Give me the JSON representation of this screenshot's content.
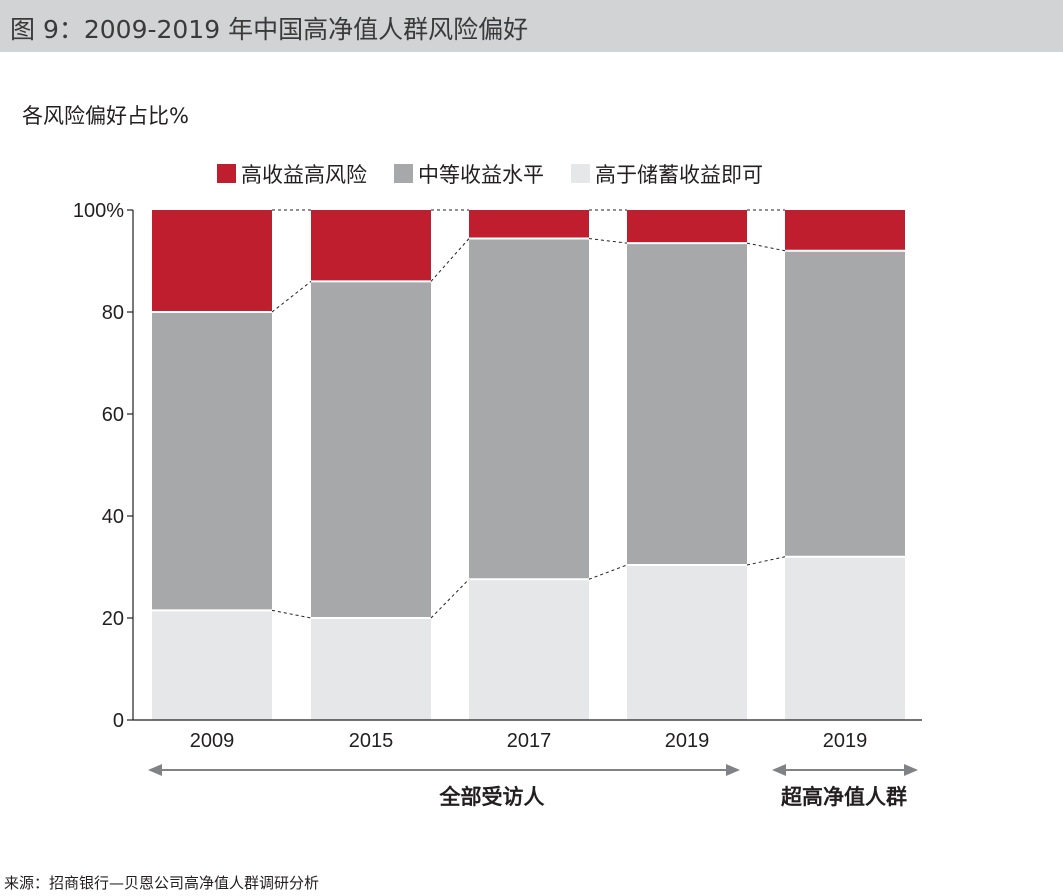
{
  "header": {
    "title": "图 9：2009-2019 年中国高净值人群风险偏好"
  },
  "subtitle": "各风险偏好占比%",
  "source": "来源：招商银行—贝恩公司高净值人群调研分析",
  "chart_data": {
    "type": "bar",
    "stacked": true,
    "categories": [
      "2009",
      "2015",
      "2017",
      "2019",
      "2019"
    ],
    "series": [
      {
        "name": "高于储蓄收益即可",
        "color": "#e6e7e8",
        "values": [
          21.5,
          20,
          27.6,
          30.4,
          32
        ]
      },
      {
        "name": "中等收益水平",
        "color": "#a7a8aa",
        "values": [
          58.5,
          66,
          66.8,
          63.1,
          60
        ]
      },
      {
        "name": "高收益高风险",
        "color": "#be1e2d",
        "values": [
          20,
          14,
          5.6,
          6.5,
          8
        ]
      }
    ],
    "ylim": [
      0,
      100
    ],
    "yticks": [
      0,
      20,
      40,
      60,
      80,
      100
    ],
    "ytick_labels": [
      "0",
      "20",
      "40",
      "60",
      "80",
      "100%"
    ],
    "legend_order": [
      "高收益高风险",
      "中等收益水平",
      "高于储蓄收益即可"
    ],
    "legend_position": "top",
    "group_labels": [
      {
        "label": "全部受访人",
        "categories": [
          "2009",
          "2015",
          "2017",
          "2019"
        ]
      },
      {
        "label": "超高净值人群",
        "categories": [
          "2019"
        ]
      }
    ],
    "connector_lines": "dashed",
    "grid": false
  }
}
